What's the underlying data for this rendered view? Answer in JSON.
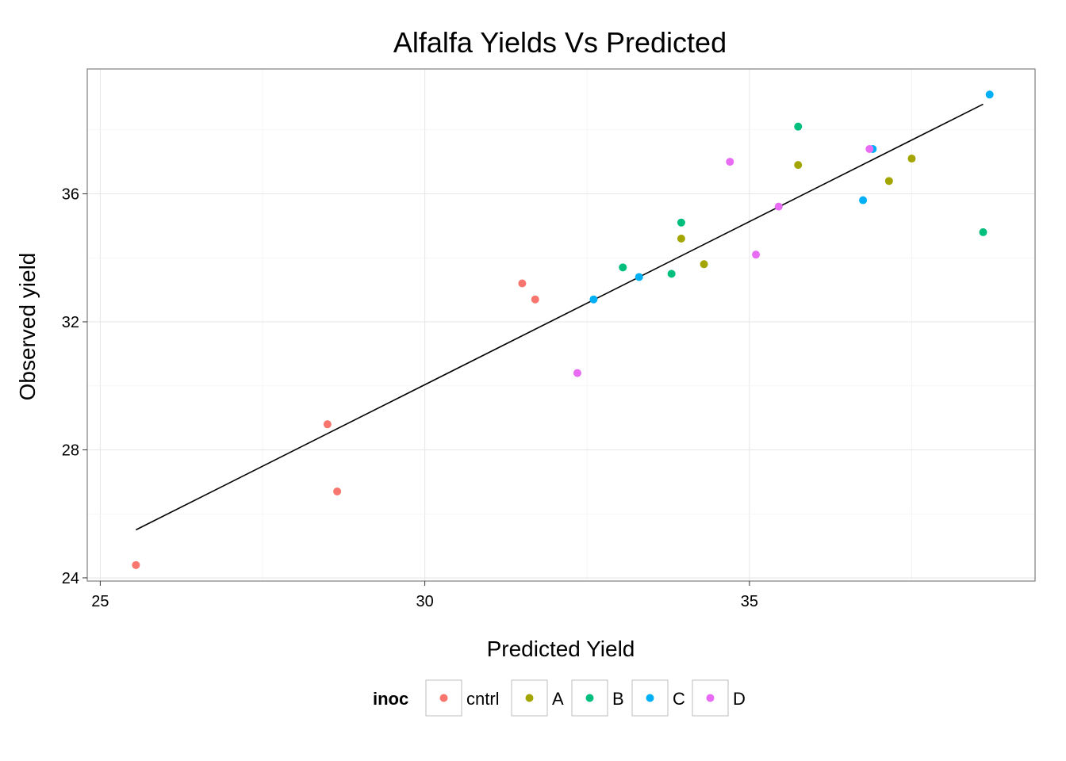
{
  "chart_data": {
    "type": "scatter",
    "title": "Alfalfa Yields Vs Predicted",
    "xlabel": "Predicted Yield",
    "ylabel": "Observed yield",
    "xlim": [
      24.8,
      39.4
    ],
    "ylim": [
      23.9,
      39.9
    ],
    "x_ticks": [
      25,
      30,
      35
    ],
    "y_ticks": [
      24,
      28,
      32,
      36
    ],
    "grid": true,
    "legend": {
      "title": "inoc",
      "position": "bottom"
    },
    "series": [
      {
        "name": "cntrl",
        "color": "#F8766D",
        "points": [
          [
            25.55,
            24.4
          ],
          [
            28.5,
            28.8
          ],
          [
            28.65,
            26.7
          ],
          [
            31.5,
            33.2
          ],
          [
            31.7,
            32.7
          ]
        ]
      },
      {
        "name": "A",
        "color": "#A3A500",
        "points": [
          [
            33.95,
            34.6
          ],
          [
            34.3,
            33.8
          ],
          [
            35.75,
            36.9
          ],
          [
            37.15,
            36.4
          ],
          [
            37.5,
            37.1
          ]
        ]
      },
      {
        "name": "B",
        "color": "#00BF7D",
        "points": [
          [
            33.05,
            33.7
          ],
          [
            33.8,
            33.5
          ],
          [
            33.95,
            35.1
          ],
          [
            35.75,
            38.1
          ],
          [
            38.6,
            34.8
          ]
        ]
      },
      {
        "name": "C",
        "color": "#00B0F6",
        "points": [
          [
            32.6,
            32.7
          ],
          [
            33.3,
            33.4
          ],
          [
            36.75,
            35.8
          ],
          [
            36.9,
            37.4
          ],
          [
            38.7,
            39.1
          ]
        ]
      },
      {
        "name": "D",
        "color": "#E76BF3",
        "points": [
          [
            32.35,
            30.4
          ],
          [
            34.7,
            37.0
          ],
          [
            35.1,
            34.1
          ],
          [
            35.45,
            35.6
          ],
          [
            36.85,
            37.4
          ]
        ]
      }
    ],
    "fit_line": {
      "x": [
        25.55,
        38.6
      ],
      "y": [
        25.5,
        38.8
      ],
      "color": "#000000"
    }
  }
}
